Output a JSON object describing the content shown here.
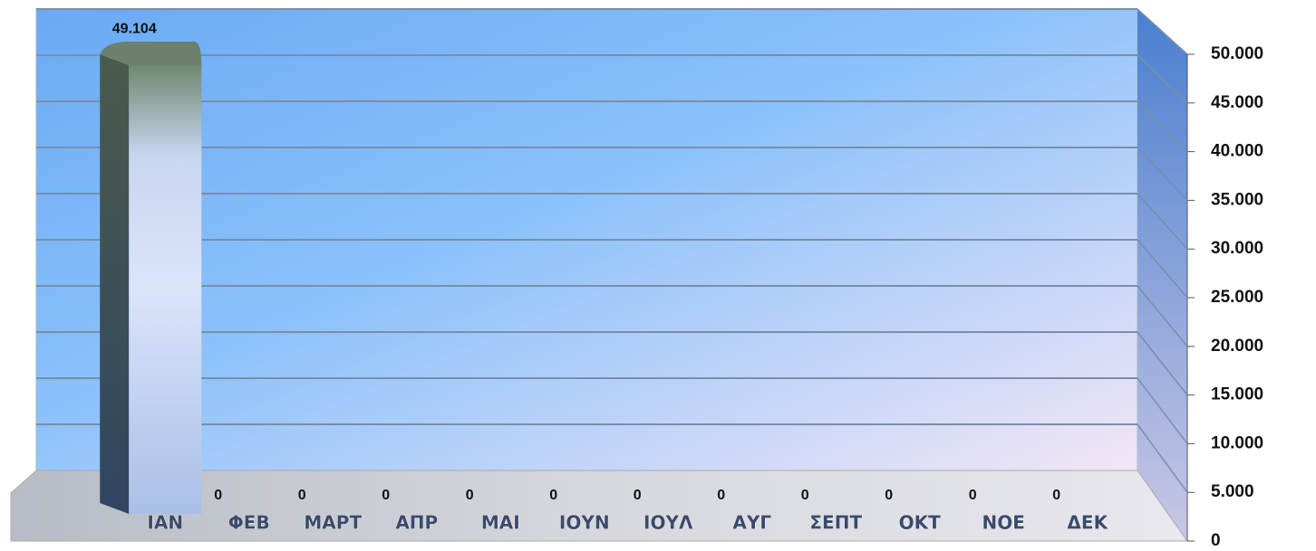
{
  "chart_data": {
    "type": "bar",
    "categories": [
      "ΙΑΝ",
      "ΦΕΒ",
      "ΜΑΡΤ",
      "ΑΠΡ",
      "ΜΑΙ",
      "ΙΟΥΝ",
      "ΙΟΥΛ",
      "ΑΥΓ",
      "ΣΕΠΤ",
      "ΟΚΤ",
      "ΝΟΕ",
      "ΔΕΚ"
    ],
    "values": [
      49104,
      0,
      0,
      0,
      0,
      0,
      0,
      0,
      0,
      0,
      0,
      0
    ],
    "value_labels": [
      "49.104",
      "0",
      "0",
      "0",
      "0",
      "0",
      "0",
      "0",
      "0",
      "0",
      "0",
      "0"
    ],
    "color": "#cfdcf8",
    "ylim": [
      0,
      50000
    ],
    "yticks": [
      0,
      {
        "value": 5000,
        "label": "5.000"
      },
      {
        "value": 10000,
        "label": "10.000"
      },
      {
        "value": 15000,
        "label": "15.000"
      },
      {
        "value": 20000,
        "label": "20.000"
      },
      {
        "value": 25000,
        "label": "25.000"
      },
      {
        "value": 30000,
        "label": "30.000"
      },
      {
        "value": 35000,
        "label": "35.000"
      },
      {
        "value": 40000,
        "label": "40.000"
      },
      {
        "value": 45000,
        "label": "45.000"
      },
      {
        "value": 50000,
        "label": "50.000"
      }
    ],
    "grid": true
  }
}
